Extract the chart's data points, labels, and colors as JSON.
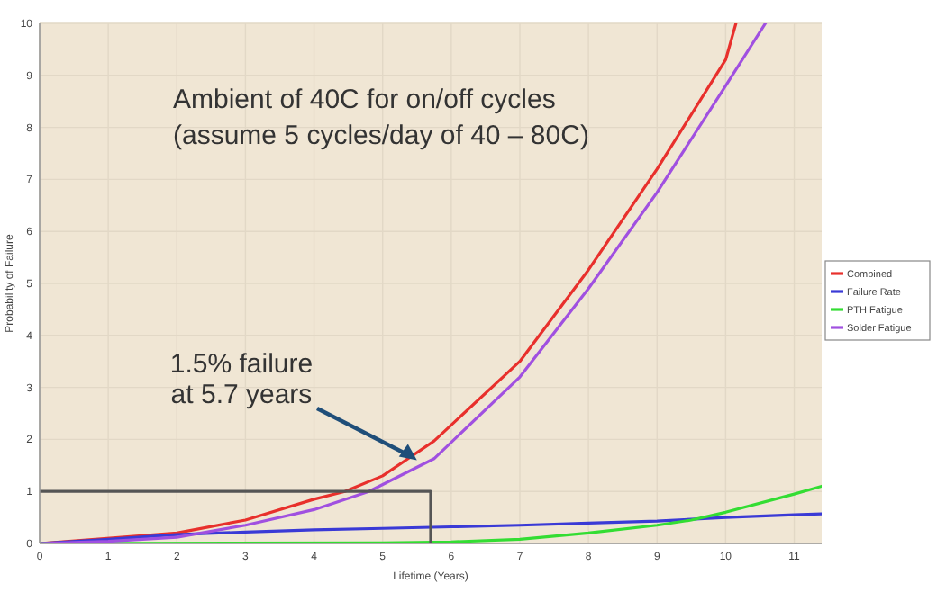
{
  "chart_data": {
    "type": "line",
    "xlabel": "Lifetime (Years)",
    "ylabel": "Probability of Failure",
    "xlim": [
      0,
      11.4
    ],
    "ylim": [
      0,
      10
    ],
    "xticks": [
      0,
      1,
      2,
      3,
      4,
      5,
      6,
      7,
      8,
      9,
      10,
      11
    ],
    "yticks": [
      0,
      1,
      2,
      3,
      4,
      5,
      6,
      7,
      8,
      9,
      10
    ],
    "grid": true,
    "legend": "right",
    "marker": "none",
    "line_style": "solid",
    "annotations": [
      "Ambient of 40C for on/off cycles",
      "(assume 5 cycles/day of 40 – 80C)",
      {
        "text": "1.5% failure\nat 5.7 years",
        "x": 5.5,
        "y": 1.6
      }
    ],
    "series": [
      {
        "name": "Combined",
        "color": "#e8302c",
        "x": [
          0,
          2,
          3,
          4,
          4.45,
          5,
          5.75,
          7,
          8,
          9,
          10,
          10.15
        ],
        "values": [
          0,
          0.2,
          0.45,
          0.85,
          1,
          1.3,
          1.97,
          3.5,
          5.26,
          7.2,
          9.3,
          10
        ]
      },
      {
        "name": "Failure Rate",
        "color": "#3a3ad6",
        "x": [
          0,
          1,
          2,
          3,
          4,
          5,
          6,
          7,
          8,
          9,
          10,
          11,
          11.4
        ],
        "values": [
          0,
          0.08,
          0.17,
          0.22,
          0.26,
          0.29,
          0.32,
          0.35,
          0.39,
          0.43,
          0.5,
          0.55,
          0.57
        ]
      },
      {
        "name": "PTH Fatigue",
        "color": "#33dd33",
        "x": [
          0,
          5,
          6,
          7,
          8,
          9,
          9.5,
          10,
          11,
          11.4
        ],
        "values": [
          0,
          0.01,
          0.03,
          0.08,
          0.2,
          0.35,
          0.45,
          0.6,
          0.95,
          1.1
        ]
      },
      {
        "name": "Solder Fatigue",
        "color": "#a050e0",
        "x": [
          0,
          1,
          2,
          3,
          4,
          4.8,
          5.75,
          7,
          8,
          9,
          10,
          10.58
        ],
        "values": [
          0,
          0.04,
          0.12,
          0.35,
          0.65,
          1,
          1.63,
          3.2,
          4.9,
          6.75,
          8.8,
          10
        ]
      },
      {
        "color": "#555555",
        "x": [
          0,
          5.7,
          5.7
        ],
        "values": [
          1,
          1,
          0
        ]
      }
    ]
  }
}
